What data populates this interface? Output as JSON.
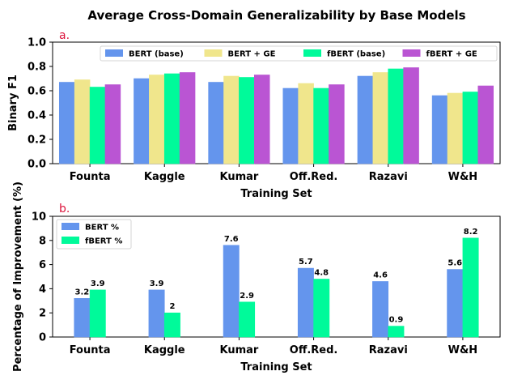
{
  "figure_title": "Average Cross-Domain Generalizability by Base Models",
  "colors": {
    "bert_base": "#6495ED",
    "bert_ge": "#F0E68C",
    "fbert_base": "#00FA9A",
    "fbert_ge": "#BA55D3",
    "panel_label": "#DC143C"
  },
  "chart_data": [
    {
      "type": "bar",
      "panel_label": "a.",
      "title": "",
      "xlabel": "Training Set",
      "ylabel": "Binary F1",
      "ylim": [
        0,
        1.0
      ],
      "yticks": [
        "0.0",
        "0.2",
        "0.4",
        "0.6",
        "0.8",
        "1.0"
      ],
      "grid": false,
      "legend_position": "top-right",
      "categories": [
        "Founta",
        "Kaggle",
        "Kumar",
        "Off.Red.",
        "Razavi",
        "W&H"
      ],
      "series": [
        {
          "name": "BERT (base)",
          "color_key": "bert_base",
          "values": [
            0.67,
            0.7,
            0.67,
            0.62,
            0.72,
            0.56
          ]
        },
        {
          "name": "BERT + GE",
          "color_key": "bert_ge",
          "values": [
            0.69,
            0.73,
            0.72,
            0.66,
            0.75,
            0.58
          ]
        },
        {
          "name": "fBERT (base)",
          "color_key": "fbert_base",
          "values": [
            0.63,
            0.74,
            0.71,
            0.62,
            0.78,
            0.59
          ]
        },
        {
          "name": "fBERT + GE",
          "color_key": "fbert_ge",
          "values": [
            0.65,
            0.75,
            0.73,
            0.65,
            0.79,
            0.64
          ]
        }
      ]
    },
    {
      "type": "bar",
      "panel_label": "b.",
      "title": "",
      "xlabel": "Training Set",
      "ylabel": "Percentage of Improvement (%)",
      "ylim": [
        0,
        10
      ],
      "yticks": [
        "0",
        "2",
        "4",
        "6",
        "8",
        "10"
      ],
      "grid": false,
      "legend_position": "top-left",
      "categories": [
        "Founta",
        "Kaggle",
        "Kumar",
        "Off.Red.",
        "Razavi",
        "W&H"
      ],
      "series": [
        {
          "name": "BERT %",
          "color_key": "bert_base",
          "values": [
            3.2,
            3.9,
            7.6,
            5.7,
            4.6,
            5.6
          ],
          "labels": [
            "3.2",
            "3.9",
            "7.6",
            "5.7",
            "4.6",
            "5.6"
          ]
        },
        {
          "name": "fBERT %",
          "color_key": "fbert_base",
          "values": [
            3.9,
            2,
            2.9,
            4.8,
            0.9,
            8.2
          ],
          "labels": [
            "3.9",
            "2",
            "2.9",
            "4.8",
            "0.9",
            "8.2"
          ]
        }
      ]
    }
  ]
}
